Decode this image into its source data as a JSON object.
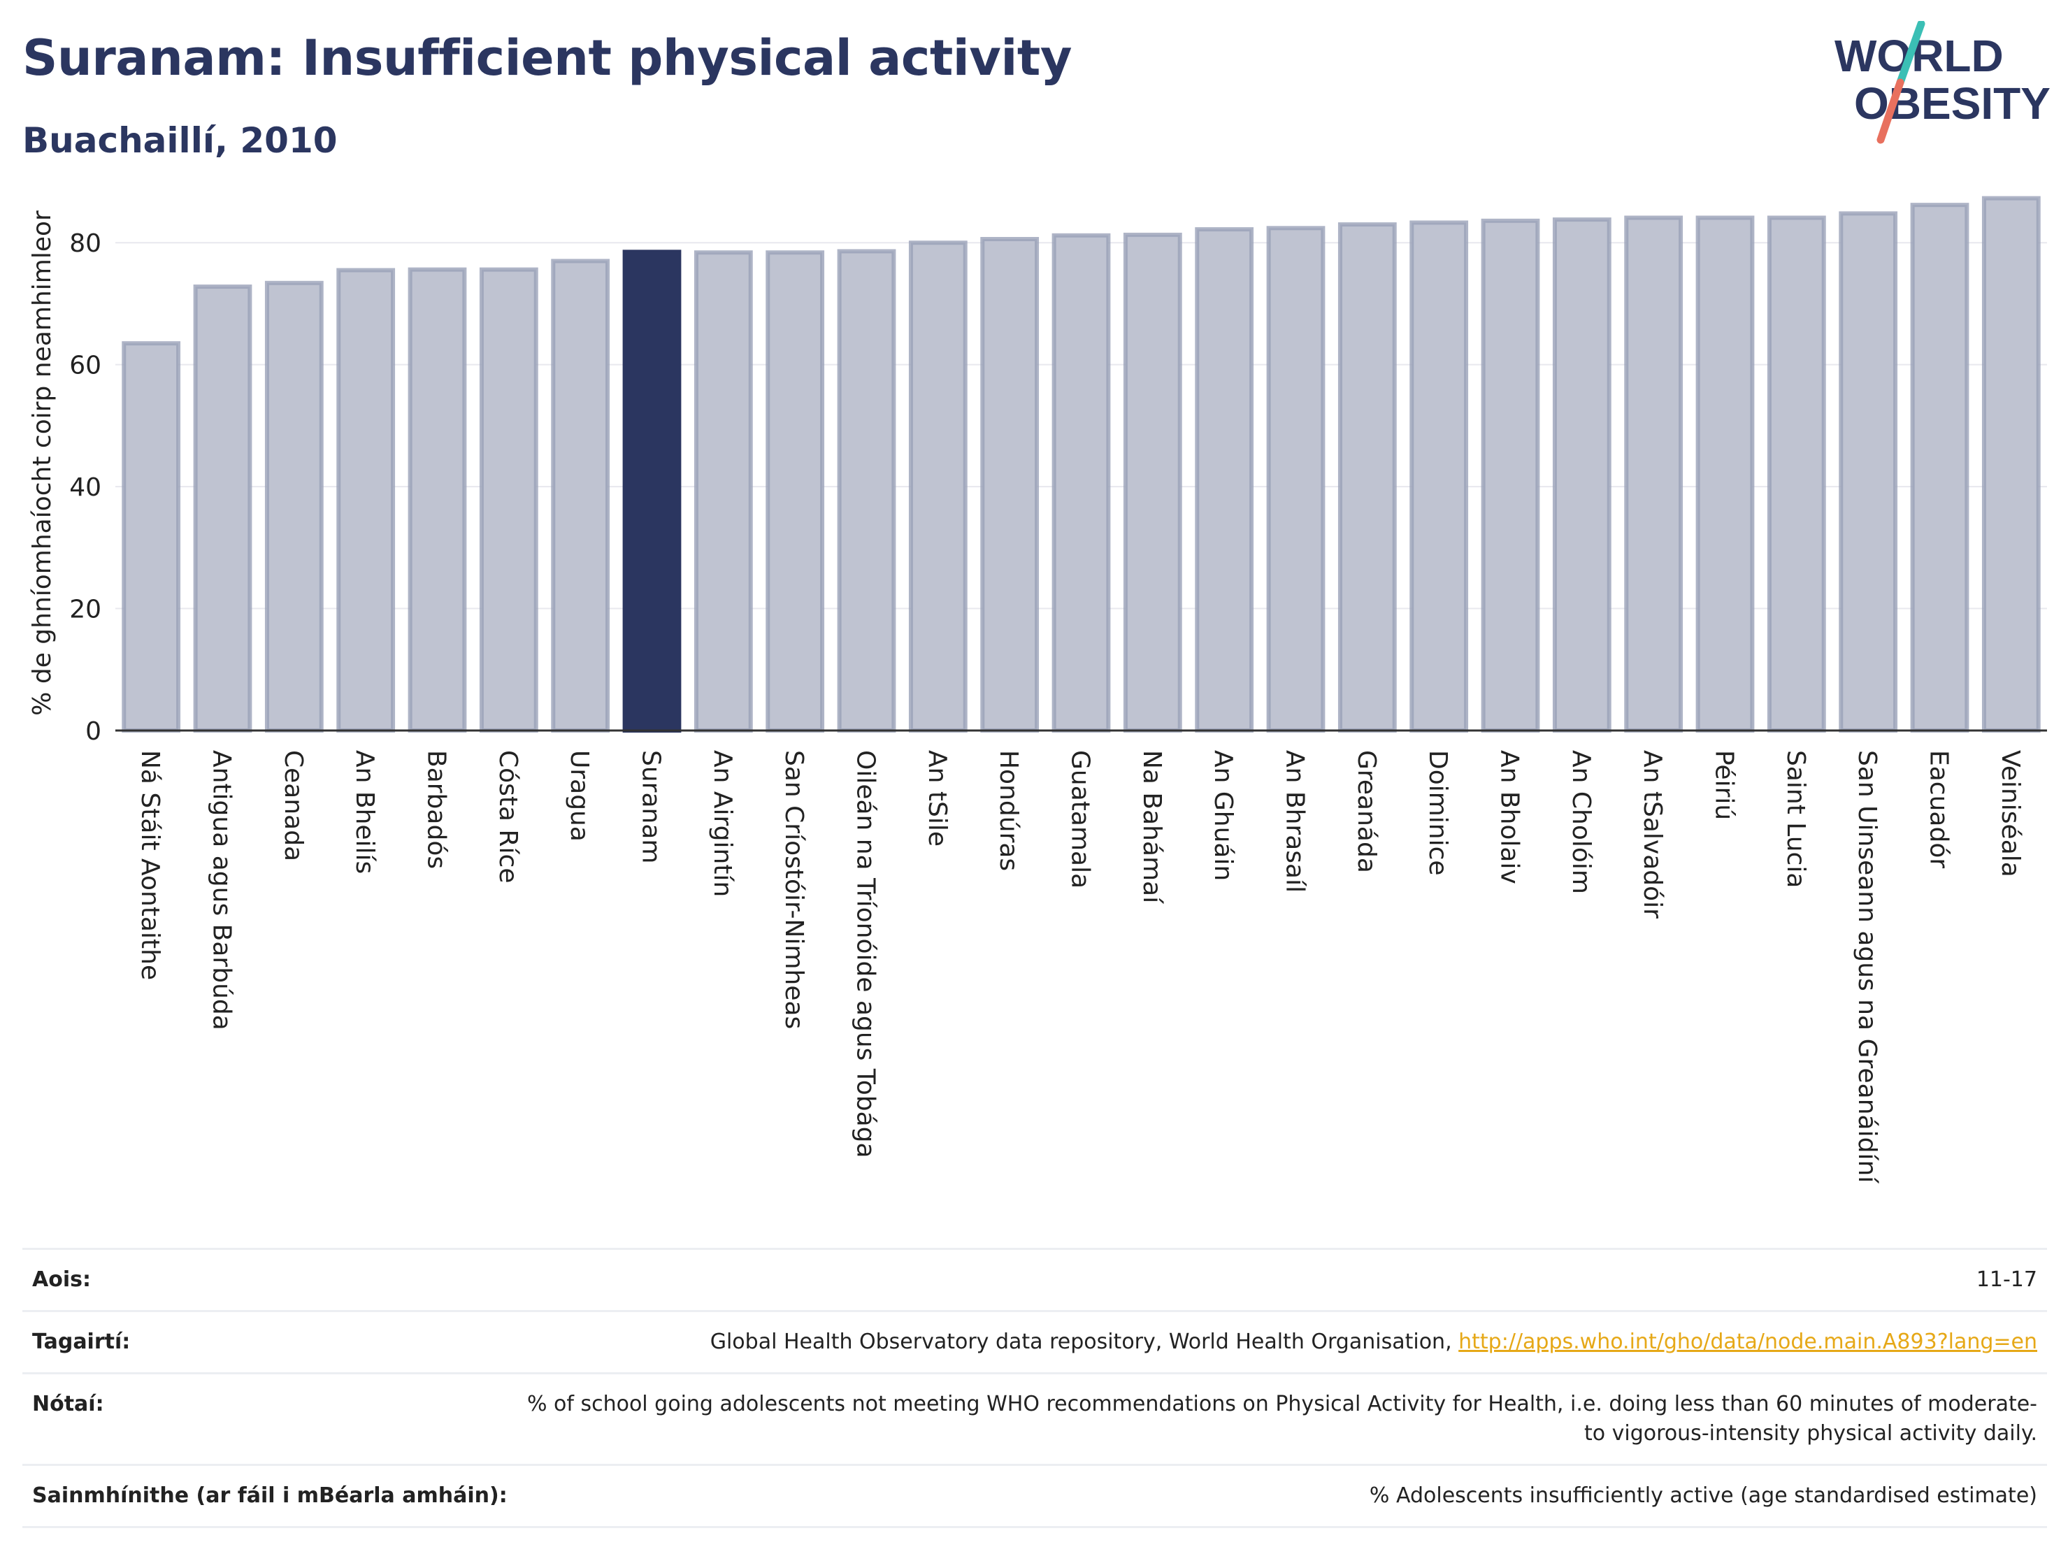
{
  "header": {
    "title": "Suranam: Insufficient physical activity",
    "subtitle": "Buachaillí, 2010"
  },
  "logo": {
    "line1": "WORLD",
    "line2": "OBESITY",
    "text_color": "#2b3660",
    "accent_teal": "#3bbfb5",
    "accent_coral": "#e8705e"
  },
  "colors": {
    "bar_fill": "#bfc3d1",
    "bar_stroke": "#9aa1b8",
    "highlight": "#2b3660",
    "grid": "#e8e8ee",
    "axis": "#333333"
  },
  "chart_data": {
    "type": "bar",
    "orientation": "vertical",
    "ylabel": "% de ghníomhaíocht coirp neamhimleor",
    "ylim": [
      0,
      90
    ],
    "yticks": [
      0,
      20,
      40,
      60,
      80
    ],
    "grid": true,
    "highlight": "Suranam",
    "categories": [
      "Ná Stáit Aontaithe",
      "Antigua agus Barbúda",
      "Ceanada",
      "An Bheilís",
      "Barbadós",
      "Cósta Ríce",
      "Uragua",
      "Suranam",
      "An Airgintín",
      "San Críostóir-Nimheas",
      "Oileán na Tríonóide agus Tobága",
      "An tSile",
      "Hondúras",
      "Guatamala",
      "Na Bahámaí",
      "An Ghuáin",
      "An Bhrasaíl",
      "Greanáda",
      "Doiminice",
      "An Bholaiv",
      "An Cholóim",
      "An tSalvadóir",
      "Péiriú",
      "Saint Lucia",
      "San Uinseann agus na Greanáidíní",
      "Eacuadór",
      "Veiniséala"
    ],
    "values": [
      63.5,
      72.8,
      73.4,
      75.5,
      75.6,
      75.6,
      77.0,
      78.5,
      78.4,
      78.4,
      78.6,
      80.0,
      80.6,
      81.2,
      81.3,
      82.2,
      82.4,
      83.0,
      83.3,
      83.6,
      83.8,
      84.1,
      84.1,
      84.1,
      84.8,
      86.2,
      87.3
    ]
  },
  "info": {
    "age_label": "Aois:",
    "age_value": "11-17",
    "refs_label": "Tagairtí:",
    "refs_text": "Global Health Observatory data repository, World Health Organisation, ",
    "refs_link": "http://apps.who.int/gho/data/node.main.A893?lang=en",
    "notes_label": "Nótaí:",
    "notes_text": "% of school going adolescents not meeting WHO recommendations on Physical Activity for Health, i.e. doing less than 60 minutes of moderate- to vigorous-intensity physical activity daily.",
    "defs_label": "Sainmhínithe (ar fáil i mBéarla amháin):",
    "defs_text": "% Adolescents insufficiently active (age standardised estimate)"
  }
}
